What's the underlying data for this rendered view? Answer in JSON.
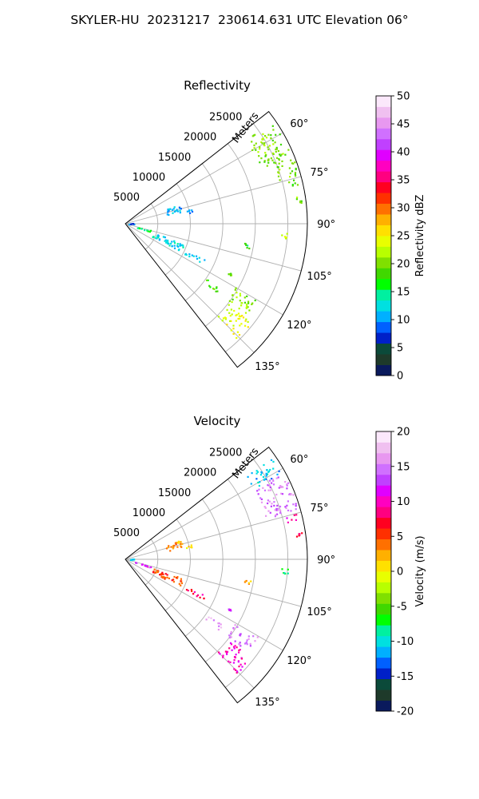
{
  "figure": {
    "title": "SKYLER-HU  20231217  230614.631 UTC Elevation 06°"
  },
  "chart_data": [
    {
      "type": "heatmap",
      "subtype": "polar-sector",
      "title": "Reflectivity",
      "radial_label": "Meters",
      "radial_ticks": [
        5000,
        10000,
        15000,
        20000,
        25000
      ],
      "radial_max": 28000,
      "azimuth_ticks": [
        "60°",
        "75°",
        "90°",
        "105°",
        "120°",
        "135°"
      ],
      "azimuth_tick_values": [
        60,
        75,
        90,
        105,
        120,
        135
      ],
      "azimuth_range": [
        52,
        142
      ],
      "grid": true,
      "colorbar": {
        "label": "Reflectivity dBZ",
        "min": 0,
        "max": 50,
        "ticks": [
          0,
          5,
          10,
          15,
          20,
          25,
          30,
          35,
          40,
          45,
          50
        ],
        "colors": [
          "#0a1a5c",
          "#1e3a2a",
          "#0b4a3a",
          "#0020c8",
          "#0060ff",
          "#00b0ff",
          "#00e0e0",
          "#00f0a0",
          "#00ff00",
          "#40d800",
          "#80e000",
          "#b8ff00",
          "#e8ff00",
          "#ffe000",
          "#ffb000",
          "#ff7000",
          "#ff3000",
          "#ff0020",
          "#ff0080",
          "#ff00c0",
          "#e000ff",
          "#c040ff",
          "#d070ff",
          "#e898f0",
          "#f0c0f0",
          "#fbe8fb"
        ]
      },
      "echo_regions": [
        {
          "az": [
            55,
            68
          ],
          "r": [
            22500,
            27500
          ],
          "value": 20
        },
        {
          "az": [
            68,
            74
          ],
          "r": [
            24500,
            27800
          ],
          "value": 20
        },
        {
          "az": [
            75,
            77
          ],
          "r": [
            25500,
            27500
          ],
          "value": 19
        },
        {
          "az": [
            81,
            83
          ],
          "r": [
            26500,
            27500
          ],
          "value": 20
        },
        {
          "az": [
            93,
            95
          ],
          "r": [
            24000,
            25000
          ],
          "value": 22
        },
        {
          "az": [
            99,
            101
          ],
          "r": [
            18500,
            19500
          ],
          "value": 17
        },
        {
          "az": [
            70,
            78
          ],
          "r": [
            6500,
            9000
          ],
          "value": 11
        },
        {
          "az": [
            76,
            80
          ],
          "r": [
            9500,
            10500
          ],
          "value": 10
        },
        {
          "az": [
            84,
            90
          ],
          "r": [
            250,
            1300
          ],
          "value": 8
        },
        {
          "az": [
            104,
            108
          ],
          "r": [
            1500,
            4000
          ],
          "value": 16
        },
        {
          "az": [
            108,
            116
          ],
          "r": [
            4500,
            9500
          ],
          "value": 12
        },
        {
          "az": [
            114,
            117
          ],
          "r": [
            10000,
            13500
          ],
          "value": 11
        },
        {
          "az": [
            124,
            127
          ],
          "r": [
            15000,
            18000
          ],
          "value": 18
        },
        {
          "az": [
            120,
            127
          ],
          "r": [
            19500,
            23500
          ],
          "value": 21
        },
        {
          "az": [
            128,
            136
          ],
          "r": [
            20000,
            24500
          ],
          "value": 24
        },
        {
          "az": [
            115,
            116
          ],
          "r": [
            17500,
            18000
          ],
          "value": 18
        }
      ]
    },
    {
      "type": "heatmap",
      "subtype": "polar-sector",
      "title": "Velocity",
      "radial_label": "Meters",
      "radial_ticks": [
        5000,
        10000,
        15000,
        20000,
        25000
      ],
      "radial_max": 28000,
      "azimuth_ticks": [
        "60°",
        "75°",
        "90°",
        "105°",
        "120°",
        "135°"
      ],
      "azimuth_tick_values": [
        60,
        75,
        90,
        105,
        120,
        135
      ],
      "azimuth_range": [
        52,
        142
      ],
      "grid": true,
      "colorbar": {
        "label": "Velocity (m/s)",
        "min": -20,
        "max": 20,
        "ticks": [
          -20,
          -15,
          -10,
          -5,
          0,
          5,
          10,
          15,
          20
        ],
        "colors": [
          "#0a1a5c",
          "#1e3a2a",
          "#0b4a3a",
          "#0020c8",
          "#0060ff",
          "#00b0ff",
          "#00e0e0",
          "#00f0a0",
          "#00ff00",
          "#40d800",
          "#80e000",
          "#b8ff00",
          "#e8ff00",
          "#ffe000",
          "#ffb000",
          "#ff7000",
          "#ff3000",
          "#ff0020",
          "#ff0080",
          "#ff00c0",
          "#e000ff",
          "#c040ff",
          "#d070ff",
          "#e898f0",
          "#f0c0f0",
          "#fbe8fb"
        ]
      },
      "echo_regions": [
        {
          "az": [
            55,
            61
          ],
          "r": [
            22500,
            27500
          ],
          "value": -11
        },
        {
          "az": [
            61,
            74
          ],
          "r": [
            22500,
            27800
          ],
          "value": 15
        },
        {
          "az": [
            75,
            77
          ],
          "r": [
            25500,
            27500
          ],
          "value": 10
        },
        {
          "az": [
            81,
            83
          ],
          "r": [
            26500,
            27500
          ],
          "value": 8
        },
        {
          "az": [
            93,
            95
          ],
          "r": [
            24000,
            25000
          ],
          "value": -8
        },
        {
          "az": [
            99,
            101
          ],
          "r": [
            18500,
            19500
          ],
          "value": 2
        },
        {
          "az": [
            70,
            78
          ],
          "r": [
            6500,
            9000
          ],
          "value": 3
        },
        {
          "az": [
            76,
            80
          ],
          "r": [
            9500,
            10500
          ],
          "value": 0
        },
        {
          "az": [
            84,
            90
          ],
          "r": [
            250,
            1300
          ],
          "value": -11
        },
        {
          "az": [
            104,
            108
          ],
          "r": [
            1500,
            4000
          ],
          "value": 12
        },
        {
          "az": [
            108,
            116
          ],
          "r": [
            4500,
            9500
          ],
          "value": 5
        },
        {
          "az": [
            114,
            117
          ],
          "r": [
            10000,
            13500
          ],
          "value": 8
        },
        {
          "az": [
            124,
            127
          ],
          "r": [
            15000,
            18000
          ],
          "value": 16
        },
        {
          "az": [
            120,
            127
          ],
          "r": [
            19500,
            23500
          ],
          "value": 15
        },
        {
          "az": [
            128,
            136
          ],
          "r": [
            20000,
            24500
          ],
          "value": 10
        },
        {
          "az": [
            115,
            116
          ],
          "r": [
            17500,
            18000
          ],
          "value": 12
        }
      ]
    }
  ]
}
